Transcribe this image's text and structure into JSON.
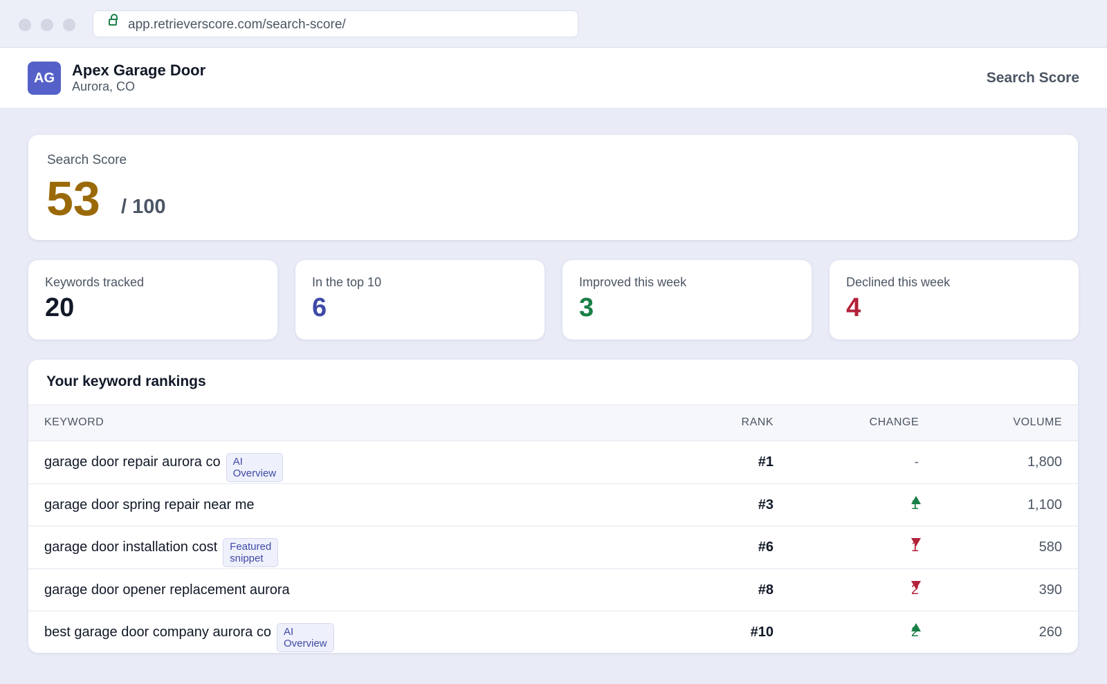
{
  "browser": {
    "url": "app.retrieverscore.com/search-score/"
  },
  "header": {
    "avatar": "AG",
    "name": "Apex Garage Door",
    "location": "Aurora, CO",
    "nav": "Search Score"
  },
  "score": {
    "label": "Search Score",
    "value": 53,
    "max": "/ 100"
  },
  "stats": [
    {
      "label": "Keywords tracked",
      "value": 20,
      "color": "#111827"
    },
    {
      "label": "In the top 10",
      "value": 6,
      "color": "#3f4aa6"
    },
    {
      "label": "Improved this week",
      "value": 3,
      "color": "#1a7f47"
    },
    {
      "label": "Declined this week",
      "value": 4,
      "color": "#b3213a"
    }
  ],
  "table": {
    "title": "Your keyword rankings",
    "columns": [
      "KEYWORD",
      "RANK",
      "CHANGE",
      "VOLUME"
    ],
    "rows": [
      {
        "keyword": "garage door repair aurora co",
        "badge": "AI Overview",
        "rank": "#1",
        "change": "-",
        "direction": "none",
        "volume": "1,800"
      },
      {
        "keyword": "garage door spring repair near me",
        "rank": "#3",
        "change": "1",
        "direction": "up",
        "volume": "1,100"
      },
      {
        "keyword": "garage door installation cost",
        "badge": "Featured snippet",
        "rank": "#6",
        "change": "1",
        "direction": "down",
        "volume": "580"
      },
      {
        "keyword": "garage door opener replacement aurora",
        "rank": "#8",
        "change": "2",
        "direction": "down",
        "volume": "390"
      },
      {
        "keyword": "best garage door company aurora co",
        "badge": "AI Overview",
        "rank": "#10",
        "change": "2",
        "direction": "up",
        "volume": "260"
      }
    ]
  }
}
